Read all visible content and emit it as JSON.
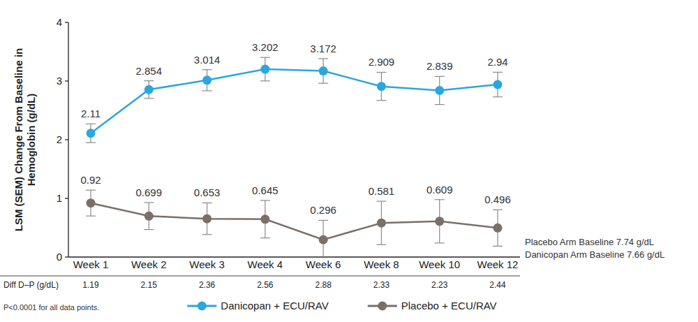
{
  "chart_data": {
    "type": "line",
    "y_label": "LSM (SEM) Change From Baseline in Hemoglobin (g/dL)",
    "categories": [
      "Week 1",
      "Week 2",
      "Week 3",
      "Week 4",
      "Week 6",
      "Week 8",
      "Week 10",
      "Week 12"
    ],
    "series": [
      {
        "name": "Danicopan + ECU/RAV",
        "color": "#2ba6de",
        "marker": "circle",
        "line_style": "solid",
        "values": [
          2.11,
          2.854,
          3.014,
          3.202,
          3.172,
          2.909,
          2.839,
          2.94
        ],
        "errors": [
          0.16,
          0.15,
          0.18,
          0.2,
          0.21,
          0.24,
          0.24,
          0.21
        ]
      },
      {
        "name": "Placebo + ECU/RAV",
        "color": "#7b6f69",
        "marker": "circle",
        "line_style": "solid",
        "values": [
          0.92,
          0.699,
          0.653,
          0.645,
          0.296,
          0.581,
          0.609,
          0.496
        ],
        "errors": [
          0.22,
          0.23,
          0.27,
          0.32,
          0.33,
          0.37,
          0.37,
          0.31
        ]
      }
    ],
    "ylim": [
      0,
      4
    ],
    "yticks": [
      0,
      1,
      2,
      3,
      4
    ],
    "grid": false,
    "legend": "bottom",
    "data_labels": true,
    "differences": {
      "label": "Diff D–P (g/dL)",
      "values": [
        1.19,
        2.15,
        2.36,
        2.56,
        2.88,
        2.33,
        2.23,
        2.44
      ]
    },
    "annotations": [
      "Placebo Arm Baseline 7.74 g/dL",
      "Danicopan Arm Baseline 7.66 g/dL",
      "P<0.0001 for all data points."
    ]
  }
}
